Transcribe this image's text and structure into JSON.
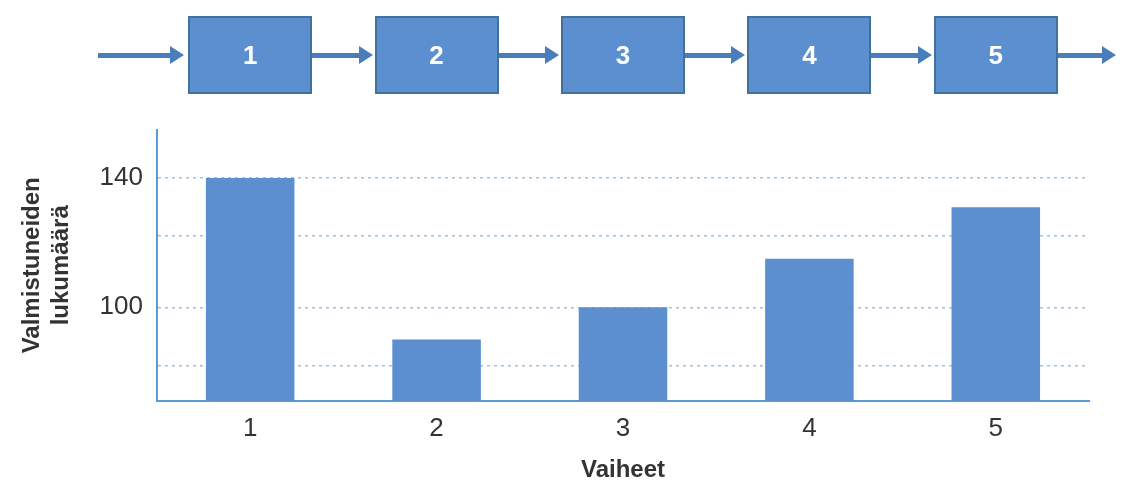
{
  "chart_data": {
    "type": "bar",
    "xlabel": "Vaiheet",
    "ylabel": "Valmistuneiden lukumäärä",
    "categories": [
      "1",
      "2",
      "3",
      "4",
      "5"
    ],
    "values": [
      140,
      90,
      100,
      115,
      131
    ],
    "color": "#5b8fd0",
    "ylim": [
      71,
      155
    ],
    "yticks": [
      {
        "value": 82,
        "label": null
      },
      100,
      {
        "value": 122,
        "label": null
      },
      140
    ],
    "grid": "y",
    "legend": false
  }
}
